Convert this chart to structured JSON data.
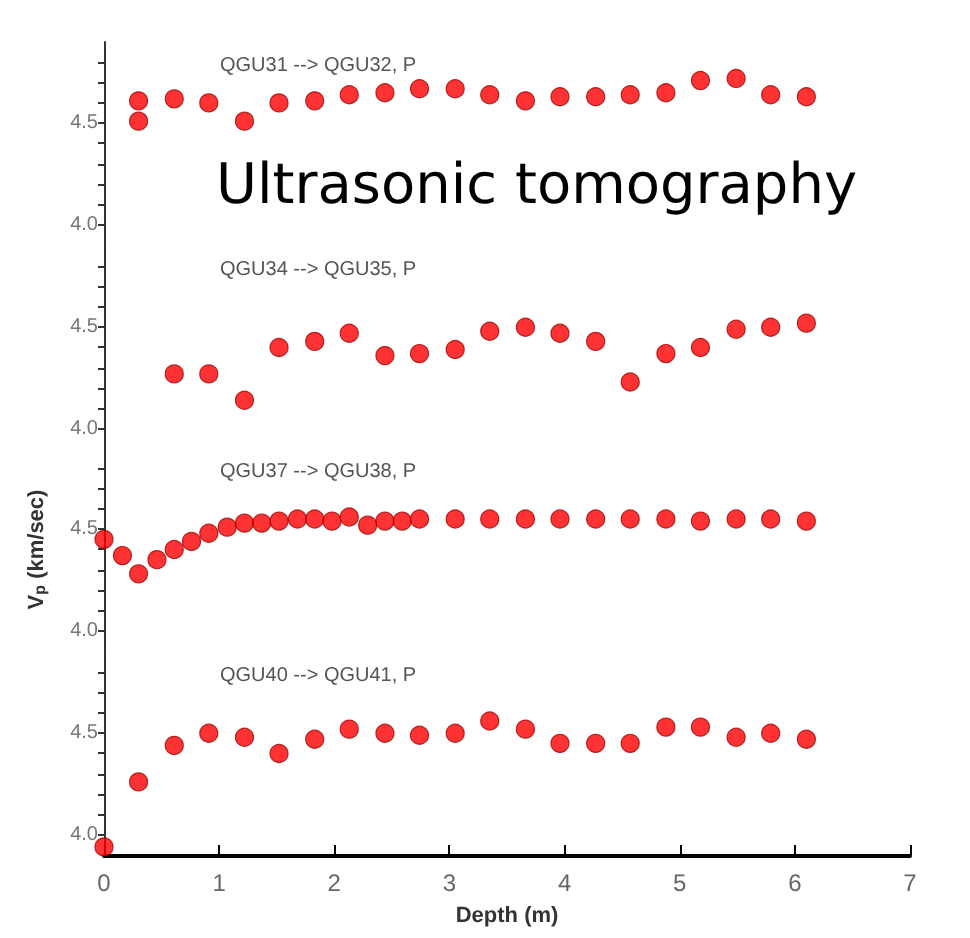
{
  "chart_data": [
    {
      "type": "scatter",
      "title": "QGU31 --> QGU32, P",
      "annotations": [
        "Ultrasonic tomography"
      ],
      "marker": "circle",
      "tick_labels": "y",
      "xlim": [
        0,
        7
      ],
      "ylim": [
        3.9,
        4.9
      ],
      "yticks": [
        {
          "value": 4,
          "label": "4.0"
        },
        {
          "value": 4.1,
          "label": null
        },
        {
          "value": 4.2,
          "label": null
        },
        {
          "value": 4.3,
          "label": null
        },
        {
          "value": 4.4,
          "label": null
        },
        {
          "value": 4.5,
          "label": "4.5"
        },
        {
          "value": 4.6,
          "label": null
        },
        {
          "value": 4.7,
          "label": null
        },
        {
          "value": 4.8,
          "label": null
        }
      ],
      "series": [
        {
          "color": "#ff0000",
          "x": [
            0.3,
            0.3,
            0.61,
            0.91,
            1.22,
            1.52,
            1.83,
            2.13,
            2.44,
            2.74,
            3.05,
            3.35,
            3.66,
            3.96,
            4.27,
            4.57,
            4.88,
            5.18,
            5.49,
            5.79,
            6.1
          ],
          "values": [
            4.61,
            4.51,
            4.62,
            4.6,
            4.51,
            4.6,
            4.61,
            4.64,
            4.65,
            4.67,
            4.67,
            4.64,
            4.61,
            4.63,
            4.63,
            4.64,
            4.65,
            4.71,
            4.72,
            4.64,
            4.63
          ]
        }
      ]
    },
    {
      "type": "scatter",
      "title": "QGU34 --> QGU35, P",
      "marker": "circle",
      "tick_labels": "y",
      "xlim": [
        0,
        7
      ],
      "ylim": [
        3.9,
        4.9
      ],
      "yticks": [
        {
          "value": 4,
          "label": "4.0"
        },
        {
          "value": 4.1,
          "label": null
        },
        {
          "value": 4.2,
          "label": null
        },
        {
          "value": 4.3,
          "label": null
        },
        {
          "value": 4.4,
          "label": null
        },
        {
          "value": 4.5,
          "label": "4.5"
        },
        {
          "value": 4.6,
          "label": null
        },
        {
          "value": 4.7,
          "label": null
        },
        {
          "value": 4.8,
          "label": null
        }
      ],
      "series": [
        {
          "color": "#ff0000",
          "x": [
            0.61,
            0.91,
            1.22,
            1.52,
            1.83,
            2.13,
            2.44,
            2.74,
            3.05,
            3.35,
            3.66,
            3.96,
            4.27,
            4.57,
            4.88,
            5.18,
            5.49,
            5.79,
            6.1
          ],
          "values": [
            4.27,
            4.27,
            4.14,
            4.4,
            4.43,
            4.47,
            4.36,
            4.37,
            4.39,
            4.48,
            4.5,
            4.47,
            4.43,
            4.23,
            4.37,
            4.4,
            4.49,
            4.5,
            4.52
          ]
        }
      ]
    },
    {
      "type": "scatter",
      "title": "QGU37 --> QGU38, P",
      "ylabel": "V$_{p}$ (km/sec)",
      "marker": "circle",
      "tick_labels": "y",
      "xlim": [
        0,
        7
      ],
      "ylim": [
        3.9,
        4.9
      ],
      "yticks": [
        {
          "value": 4,
          "label": "4.0"
        },
        {
          "value": 4.1,
          "label": null
        },
        {
          "value": 4.2,
          "label": null
        },
        {
          "value": 4.3,
          "label": null
        },
        {
          "value": 4.4,
          "label": null
        },
        {
          "value": 4.5,
          "label": "4.5"
        },
        {
          "value": 4.6,
          "label": null
        },
        {
          "value": 4.7,
          "label": null
        },
        {
          "value": 4.8,
          "label": null
        }
      ],
      "series": [
        {
          "color": "#ff0000",
          "x": [
            0,
            0.16,
            0.3,
            0.46,
            0.61,
            0.76,
            0.91,
            1.07,
            1.22,
            1.37,
            1.52,
            1.68,
            1.83,
            1.98,
            2.13,
            2.29,
            2.44,
            2.59,
            2.74,
            3.05,
            3.35,
            3.66,
            3.96,
            4.27,
            4.57,
            4.88,
            5.18,
            5.49,
            5.79,
            6.1
          ],
          "values": [
            4.45,
            4.37,
            4.28,
            4.35,
            4.4,
            4.44,
            4.48,
            4.51,
            4.53,
            4.53,
            4.54,
            4.55,
            4.55,
            4.54,
            4.56,
            4.52,
            4.54,
            4.54,
            4.55,
            4.55,
            4.55,
            4.55,
            4.55,
            4.55,
            4.55,
            4.55,
            4.54,
            4.55,
            4.55,
            4.54
          ]
        }
      ]
    },
    {
      "type": "scatter",
      "title": "QGU40 --> QGU41, P",
      "xlabel": "Depth (m)",
      "marker": "circle",
      "xlim": [
        0,
        7
      ],
      "xticks": [
        0,
        1,
        2,
        3,
        4,
        5,
        6,
        7
      ],
      "ylim": [
        3.9,
        4.9
      ],
      "yticks": [
        {
          "value": 4,
          "label": "4.0"
        },
        {
          "value": 4.1,
          "label": null
        },
        {
          "value": 4.2,
          "label": null
        },
        {
          "value": 4.3,
          "label": null
        },
        {
          "value": 4.4,
          "label": null
        },
        {
          "value": 4.5,
          "label": "4.5"
        },
        {
          "value": 4.6,
          "label": null
        },
        {
          "value": 4.7,
          "label": null
        },
        {
          "value": 4.8,
          "label": null
        }
      ],
      "series": [
        {
          "color": "#ff0000",
          "x": [
            0,
            0.3,
            0.61,
            0.91,
            1.22,
            1.52,
            1.83,
            2.13,
            2.44,
            2.74,
            3.05,
            3.35,
            3.66,
            3.96,
            4.27,
            4.57,
            4.88,
            5.18,
            5.49,
            5.79,
            6.1
          ],
          "values": [
            3.94,
            4.26,
            4.44,
            4.5,
            4.48,
            4.4,
            4.47,
            4.52,
            4.5,
            4.49,
            4.5,
            4.56,
            4.52,
            4.45,
            4.45,
            4.45,
            4.53,
            4.53,
            4.48,
            4.5,
            4.47
          ]
        }
      ]
    }
  ]
}
